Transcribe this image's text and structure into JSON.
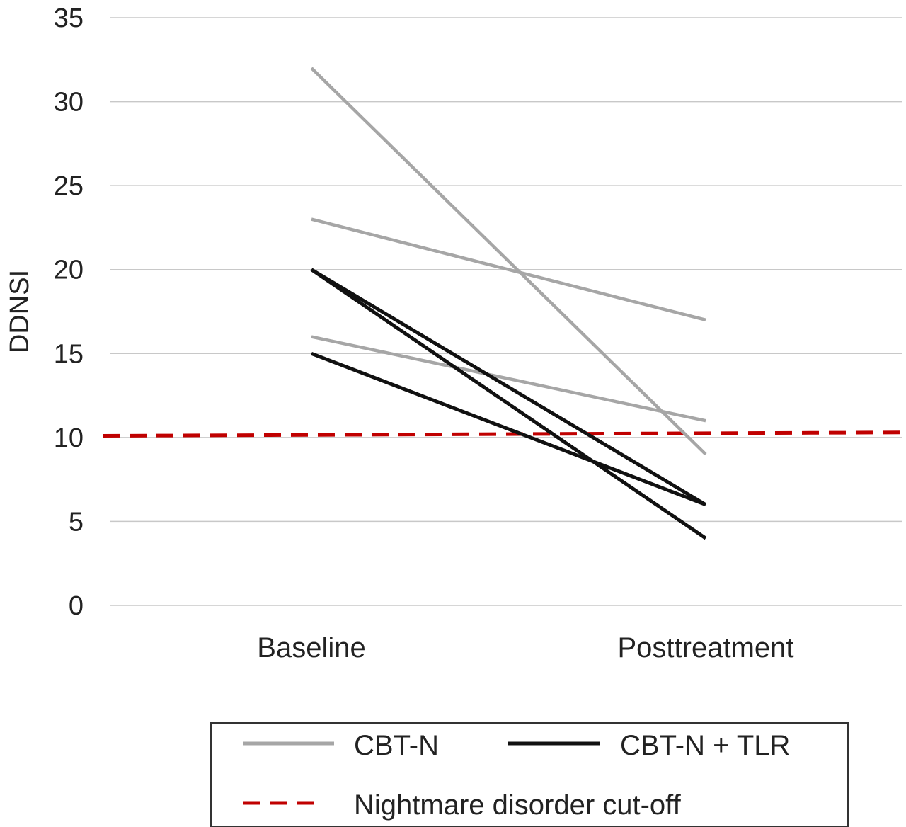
{
  "chart_data": {
    "type": "line",
    "ylabel": "DDNSI",
    "xlabel": "",
    "categories": [
      "Baseline",
      "Posttreatment"
    ],
    "ylim": [
      0,
      35
    ],
    "yticks": [
      "0",
      "5",
      "10",
      "15",
      "20",
      "25",
      "30",
      "35"
    ],
    "grid": true,
    "series": [
      {
        "group": "CBT-N",
        "color": "#a6a6a6",
        "values": [
          32,
          9
        ]
      },
      {
        "group": "CBT-N",
        "color": "#a6a6a6",
        "values": [
          23,
          17
        ]
      },
      {
        "group": "CBT-N",
        "color": "#a6a6a6",
        "values": [
          16,
          11
        ]
      },
      {
        "group": "CBT-N + TLR",
        "color": "#111111",
        "values": [
          20,
          6
        ]
      },
      {
        "group": "CBT-N + TLR",
        "color": "#111111",
        "values": [
          20,
          4
        ]
      },
      {
        "group": "CBT-N + TLR",
        "color": "#111111",
        "values": [
          15,
          6
        ]
      }
    ],
    "reference_line": {
      "label": "Nightmare disorder cut-off",
      "values": [
        10.1,
        10.3
      ],
      "color": "#c00000",
      "style": "dashed"
    },
    "legend": {
      "placement": "bottom",
      "entries": [
        {
          "label": "CBT-N",
          "color": "#a6a6a6",
          "style": "solid"
        },
        {
          "label": "CBT-N + TLR",
          "color": "#111111",
          "style": "solid"
        },
        {
          "label": "Nightmare disorder cut-off",
          "color": "#c00000",
          "style": "dashed"
        }
      ]
    }
  }
}
